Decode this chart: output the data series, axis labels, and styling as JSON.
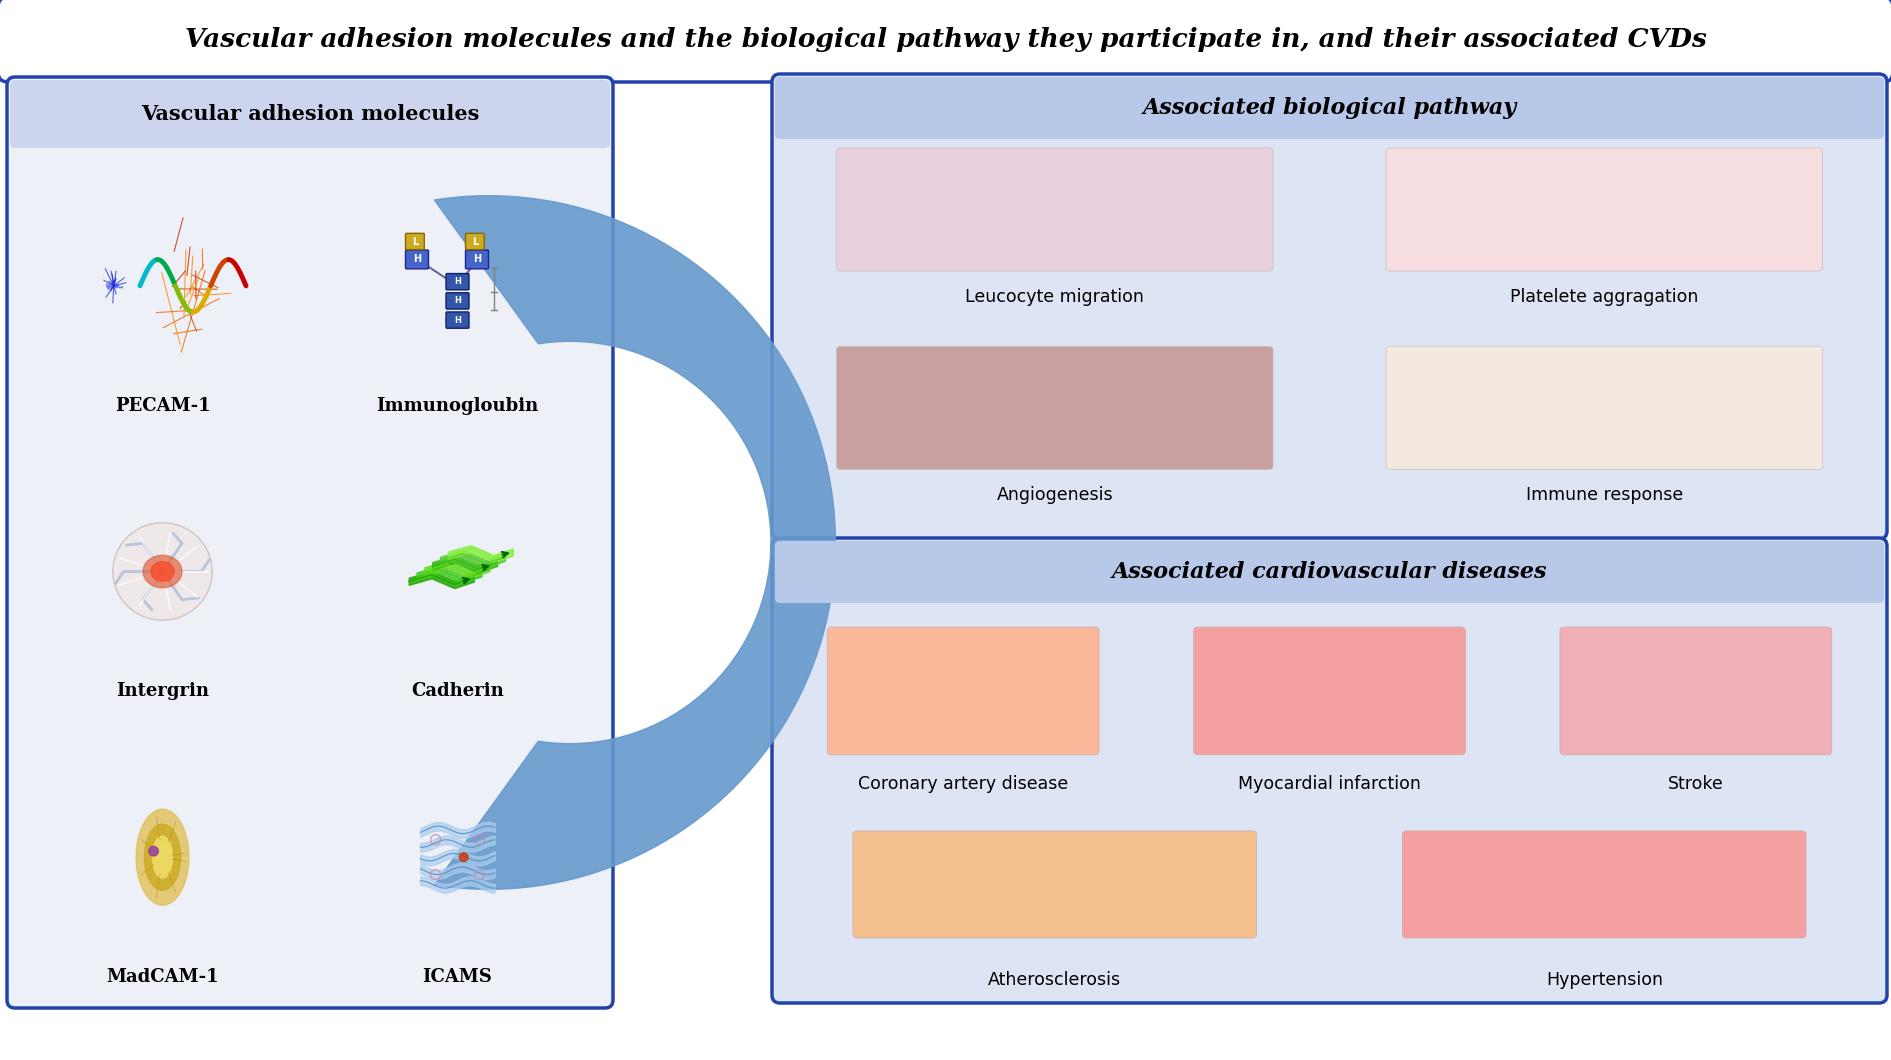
{
  "title": "Vascular adhesion molecules and the biological pathway they participate in, and their associated CVDs",
  "title_fontsize": 19,
  "title_bg": "#ffffff",
  "title_border": "#2244aa",
  "outer_bg": "#ffffff",
  "left_panel_bg": "#eef0f8",
  "left_panel_border": "#2244aa",
  "left_panel_header_bg": "#cdd5ee",
  "left_panel_title": "Vascular adhesion molecules",
  "right_top_panel_bg": "#dde4f4",
  "right_top_panel_border": "#2244aa",
  "right_top_panel_header_bg": "#b8c8e8",
  "right_top_panel_title": "Associated biological pathway",
  "right_bot_panel_bg": "#dde4f4",
  "right_bot_panel_border": "#2244aa",
  "right_bot_panel_header_bg": "#b8c8e8",
  "right_bot_panel_title": "Associated cardiovascular diseases",
  "molecules": [
    "PECAM-1",
    "Immunogloubin",
    "Intergrin",
    "Cadherin",
    "MadCAM-1",
    "ICAMS"
  ],
  "bio_pathways": [
    "Leucocyte migration",
    "Platelete aggragation",
    "Angiogenesis",
    "Immune response"
  ],
  "cvd_diseases": [
    "Coronary artery disease",
    "Myocardial infarction",
    "Stroke",
    "Atherosclerosis",
    "Hypertension"
  ],
  "arrow_fill": "#6699cc",
  "panel_label_fontsize": 15,
  "item_label_fontsize": 12.5,
  "mol_label_fontsize": 13
}
